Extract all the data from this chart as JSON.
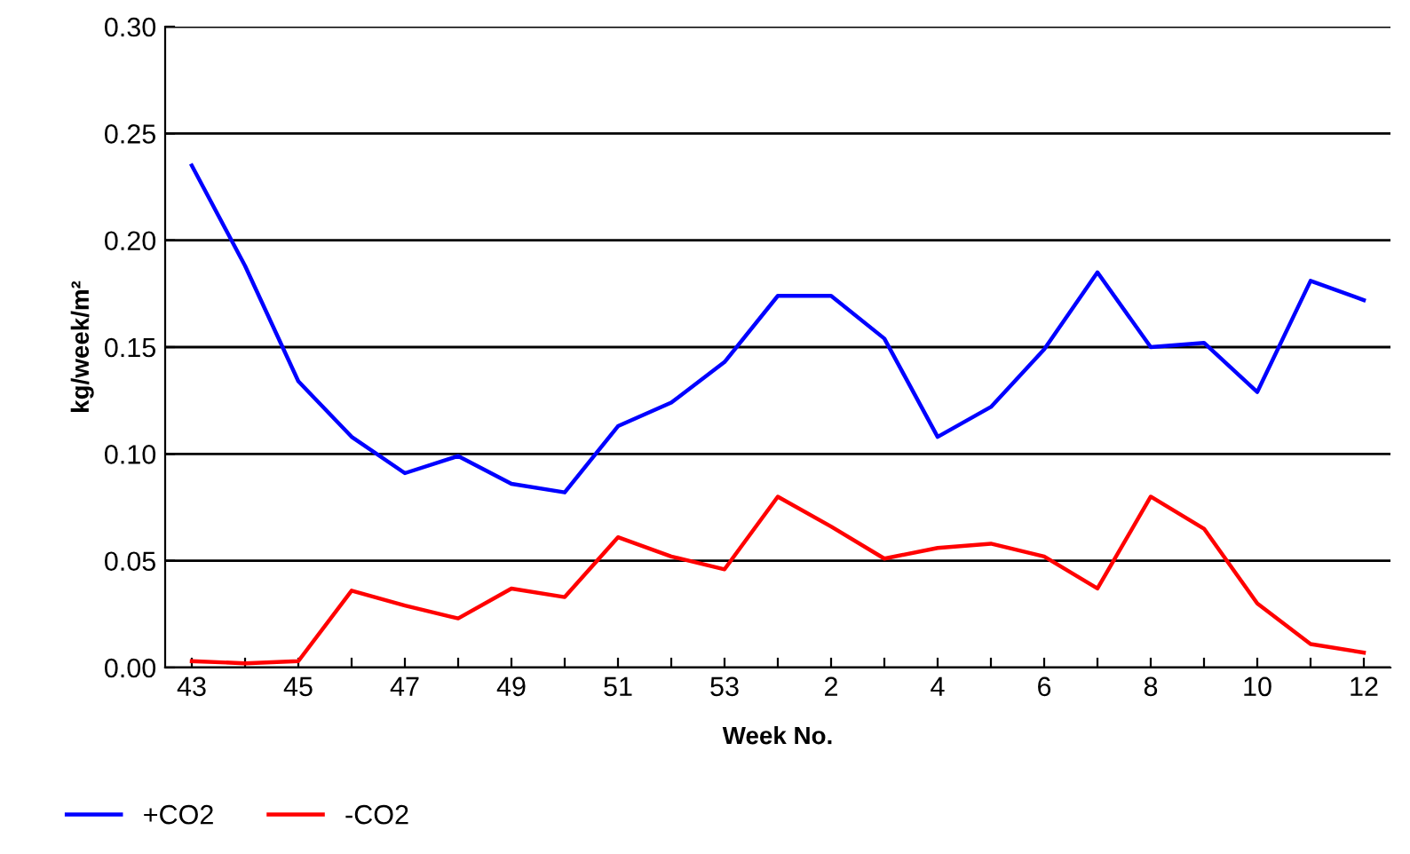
{
  "chart_data": {
    "type": "line",
    "xlabel": "Week No.",
    "ylabel": "kg/week/m²",
    "categories": [
      "43",
      null,
      "45",
      null,
      "47",
      null,
      "49",
      null,
      "51",
      null,
      "53",
      null,
      "2",
      null,
      "4",
      null,
      "6",
      null,
      "8",
      null,
      "10",
      null,
      "12"
    ],
    "series": [
      {
        "name": "+CO2",
        "color": "#0000ff",
        "values": [
          0.235,
          0.188,
          0.134,
          0.108,
          0.091,
          0.099,
          0.086,
          0.082,
          0.113,
          0.124,
          0.143,
          0.174,
          0.174,
          0.154,
          0.108,
          0.122,
          0.149,
          0.185,
          0.15,
          0.152,
          0.129,
          0.181,
          0.172
        ]
      },
      {
        "name": "-CO2",
        "color": "#ff0000",
        "values": [
          0.003,
          0.002,
          0.003,
          0.036,
          0.029,
          0.023,
          0.037,
          0.033,
          0.061,
          0.052,
          0.046,
          0.08,
          0.066,
          0.051,
          0.056,
          0.058,
          0.052,
          0.037,
          0.08,
          0.065,
          0.03,
          0.011,
          0.007
        ]
      }
    ],
    "ylim": [
      0,
      0.3
    ],
    "yticks": [
      {
        "value": 0,
        "label": "0.00"
      },
      {
        "value": 0.05,
        "label": "0.05"
      },
      {
        "value": 0.1,
        "label": "0.10"
      },
      {
        "value": 0.15,
        "label": "0.15"
      },
      {
        "value": 0.2,
        "label": "0.20"
      },
      {
        "value": 0.25,
        "label": "0.25"
      },
      {
        "value": 0.3,
        "label": "0.30"
      }
    ],
    "grid": "y",
    "legend": "bottom left",
    "marker": "none",
    "line_style": "solid"
  }
}
